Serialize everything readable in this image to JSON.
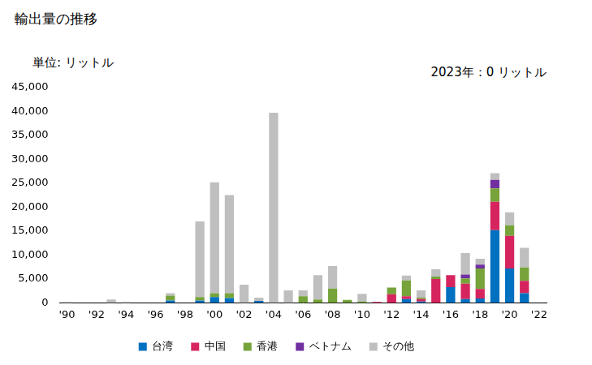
{
  "chart_data": {
    "type": "bar",
    "title": "輸出量の推移",
    "y_label": "単位: リットル",
    "annotations": [
      "2023年：0 リットル"
    ],
    "stacked": true,
    "grid": false,
    "legend": "bottom",
    "categories": [
      "'90",
      null,
      "'92",
      null,
      "'94",
      null,
      "'96",
      null,
      "'98",
      null,
      "'00",
      null,
      "'02",
      null,
      "'04",
      null,
      "'06",
      null,
      "'08",
      null,
      "'10",
      null,
      "'12",
      null,
      "'14",
      null,
      "'16",
      null,
      "'18",
      null,
      "'20",
      null,
      "'22"
    ],
    "series": [
      {
        "name": "台湾",
        "color": "#0070c0",
        "values": [
          0,
          0,
          0,
          0,
          0,
          0,
          0,
          500,
          0,
          500,
          1200,
          1000,
          0,
          400,
          0,
          0,
          0,
          0,
          0,
          0,
          0,
          0,
          0,
          800,
          300,
          0,
          3300,
          800,
          900,
          15200,
          7200,
          2000,
          0
        ]
      },
      {
        "name": "中国",
        "color": "#d6245e",
        "values": [
          0,
          0,
          0,
          0,
          0,
          0,
          0,
          0,
          0,
          0,
          0,
          0,
          0,
          0,
          0,
          0,
          0,
          0,
          0,
          0,
          0,
          200,
          1800,
          600,
          500,
          5000,
          2500,
          3200,
          2000,
          5900,
          6800,
          2600,
          0
        ]
      },
      {
        "name": "香港",
        "color": "#76a33a",
        "values": [
          0,
          0,
          0,
          0,
          0,
          0,
          0,
          1000,
          0,
          700,
          800,
          1000,
          0,
          0,
          0,
          0,
          1400,
          700,
          3000,
          600,
          300,
          0,
          1400,
          3300,
          300,
          500,
          0,
          1100,
          4300,
          2800,
          2200,
          2800,
          0
        ]
      },
      {
        "name": "ベトナム",
        "color": "#7030a0",
        "values": [
          0,
          0,
          0,
          0,
          0,
          0,
          0,
          0,
          0,
          0,
          0,
          0,
          0,
          0,
          0,
          0,
          0,
          0,
          0,
          0,
          0,
          0,
          0,
          0,
          0,
          0,
          0,
          800,
          800,
          1800,
          0,
          0,
          0
        ]
      },
      {
        "name": "その他",
        "color": "#bfbfbf",
        "values": [
          200,
          0,
          0,
          700,
          200,
          0,
          0,
          500,
          0,
          15800,
          23200,
          20500,
          3800,
          700,
          39700,
          2600,
          1200,
          5100,
          4700,
          0,
          1600,
          0,
          0,
          1000,
          1500,
          1500,
          0,
          4500,
          1200,
          1400,
          2700,
          4100,
          0
        ]
      }
    ],
    "ylim": [
      0,
      45000
    ],
    "yticks": [
      0,
      {
        "value": 5000,
        "label": "5,000"
      },
      {
        "value": 10000,
        "label": "10,000"
      },
      {
        "value": 15000,
        "label": "15,000"
      },
      {
        "value": 20000,
        "label": "20,000"
      },
      {
        "value": 25000,
        "label": "25,000"
      },
      {
        "value": 30000,
        "label": "30,000"
      },
      {
        "value": 35000,
        "label": "35,000"
      },
      {
        "value": 40000,
        "label": "40,000"
      },
      {
        "value": 45000,
        "label": "45,000"
      }
    ]
  }
}
